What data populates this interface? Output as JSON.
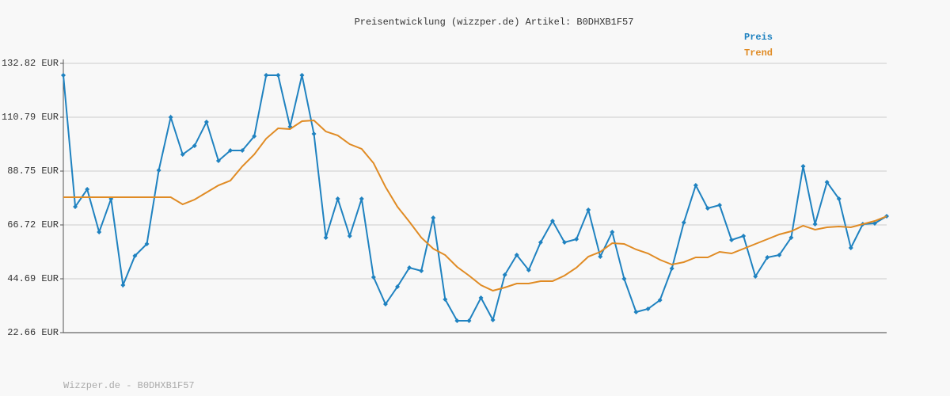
{
  "chart_data": {
    "type": "line",
    "title": "Preisentwicklung (wizzper.de) Artikel: B0DHXB1F57",
    "footer": "Wizzper.de - B0DHXB1F57",
    "ylim": [
      22.66,
      132.82
    ],
    "yticks": [
      {
        "value": 22.66,
        "label": "22.66 EUR"
      },
      {
        "value": 44.69,
        "label": "44.69 EUR"
      },
      {
        "value": 66.72,
        "label": "66.72 EUR"
      },
      {
        "value": 88.75,
        "label": "88.75 EUR"
      },
      {
        "value": 110.79,
        "label": "110.79 EUR"
      },
      {
        "value": 132.82,
        "label": "132.82 EUR"
      }
    ],
    "grid": true,
    "series": [
      {
        "name": "Preis",
        "color": "#1f82c0",
        "markers": true,
        "values": [
          127.96,
          74.17,
          81.3,
          63.81,
          77.41,
          42.1,
          54.09,
          58.95,
          89.08,
          110.79,
          95.56,
          99.12,
          108.84,
          92.97,
          97.18,
          97.18,
          103.01,
          127.96,
          127.96,
          106.9,
          127.96,
          103.98,
          61.54,
          77.41,
          62.19,
          77.41,
          45.34,
          34.32,
          41.45,
          49.23,
          47.93,
          69.64,
          36.27,
          27.52,
          27.52,
          36.92,
          27.84,
          46.31,
          54.41,
          48.26,
          59.6,
          68.34,
          59.6,
          60.89,
          72.88,
          53.76,
          63.81,
          44.69,
          31.08,
          32.38,
          35.94,
          48.9,
          67.69,
          82.92,
          73.53,
          74.82,
          60.57,
          62.19,
          45.66,
          53.44,
          54.41,
          61.54,
          90.7,
          67.05,
          84.22,
          77.41,
          57.33,
          67.05,
          67.37,
          70.29
        ]
      },
      {
        "name": "Trend",
        "color": "#e08b24",
        "markers": false,
        "values": [
          78.06,
          78.06,
          78.06,
          78.06,
          78.06,
          78.06,
          78.06,
          78.06,
          78.06,
          78.06,
          75.15,
          77.09,
          80.01,
          82.92,
          84.87,
          90.7,
          95.56,
          102.04,
          106.25,
          105.93,
          109.17,
          109.49,
          104.95,
          103.33,
          99.77,
          97.83,
          91.99,
          82.27,
          74.17,
          68.02,
          61.54,
          57.0,
          54.41,
          49.55,
          45.99,
          42.1,
          39.83,
          41.13,
          42.75,
          42.75,
          43.72,
          43.72,
          45.99,
          49.23,
          53.76,
          55.71,
          59.27,
          58.95,
          56.68,
          55.06,
          52.47,
          50.52,
          51.5,
          53.44,
          53.44,
          55.71,
          55.06,
          57.0,
          58.95,
          60.89,
          62.84,
          64.13,
          66.4,
          64.78,
          65.75,
          66.07,
          65.75,
          67.05,
          68.34,
          70.29
        ]
      }
    ]
  }
}
